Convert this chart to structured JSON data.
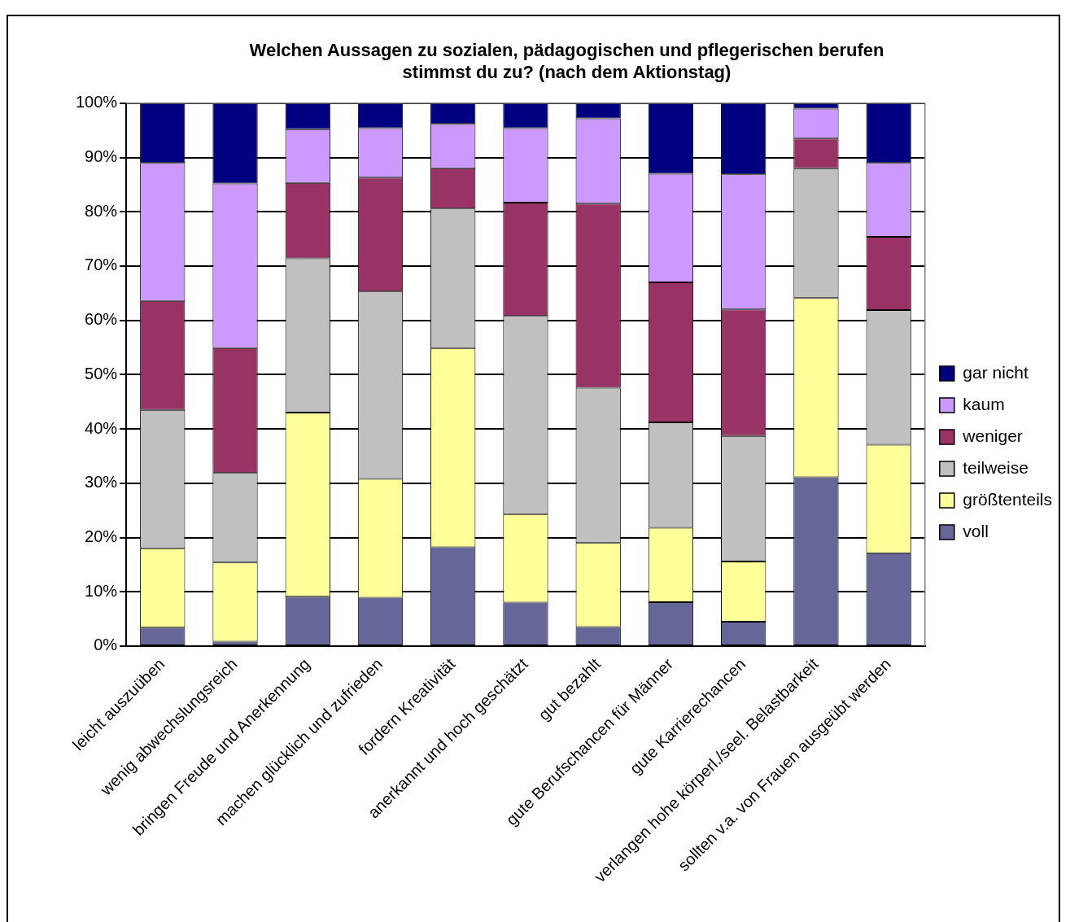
{
  "chart_data": {
    "type": "bar",
    "stacked": true,
    "title": "Welchen Aussagen zu sozialen, pädagogischen und pflegerischen berufen stimmst du zu? (nach dem Aktionstag)",
    "categories": [
      "leicht auszuüben",
      "wenig abwechslungsreich",
      "bringen Freude und Anerkennung",
      "machen glücklich und zufrieden",
      "fordern Kreativität",
      "anerkannt und hoch geschätzt",
      "gut bezahlt",
      "gute Berufschancen für Männer",
      "gute Karrierechancen",
      "verlangen hohe körperl./seel. Belastbarkeit",
      "sollten v.a. von Frauen ausgeübt werden"
    ],
    "series": [
      {
        "name": "voll",
        "color": "#666699",
        "values": [
          3.4,
          0.8,
          9.1,
          8.9,
          18.2,
          8.0,
          3.5,
          8.1,
          4.5,
          31.1,
          17.1
        ]
      },
      {
        "name": "größtenteils",
        "color": "#ffff99",
        "values": [
          14.6,
          14.6,
          33.9,
          21.9,
          36.7,
          16.3,
          15.5,
          13.7,
          11.1,
          33.0,
          20.0
        ]
      },
      {
        "name": "teilweise",
        "color": "#c0c0c0",
        "values": [
          25.5,
          16.5,
          28.4,
          34.5,
          25.7,
          36.5,
          28.6,
          19.4,
          23.1,
          23.9,
          24.8
        ]
      },
      {
        "name": "weniger",
        "color": "#993366",
        "values": [
          20.1,
          23.0,
          13.9,
          21.0,
          7.4,
          20.9,
          33.9,
          25.8,
          23.3,
          5.5,
          13.5
        ]
      },
      {
        "name": "kaum",
        "color": "#cc99ff",
        "values": [
          25.4,
          30.3,
          9.9,
          9.1,
          8.2,
          13.7,
          15.7,
          20.0,
          24.9,
          5.5,
          13.6
        ]
      },
      {
        "name": "gar nicht",
        "color": "#000080",
        "values": [
          11.0,
          14.8,
          4.8,
          4.6,
          3.8,
          4.6,
          2.8,
          13.0,
          13.1,
          1.0,
          11.0
        ]
      }
    ],
    "ylim": [
      0,
      100
    ],
    "yticks": [
      {
        "value": 0,
        "label": "0%"
      },
      {
        "value": 10,
        "label": "10%"
      },
      {
        "value": 20,
        "label": "20%"
      },
      {
        "value": 30,
        "label": "30%"
      },
      {
        "value": 40,
        "label": "40%"
      },
      {
        "value": 50,
        "label": "50%"
      },
      {
        "value": 60,
        "label": "60%"
      },
      {
        "value": 70,
        "label": "70%"
      },
      {
        "value": 80,
        "label": "80%"
      },
      {
        "value": 90,
        "label": "90%"
      },
      {
        "value": 100,
        "label": "100%"
      }
    ],
    "grid": "y",
    "legend": "right"
  }
}
